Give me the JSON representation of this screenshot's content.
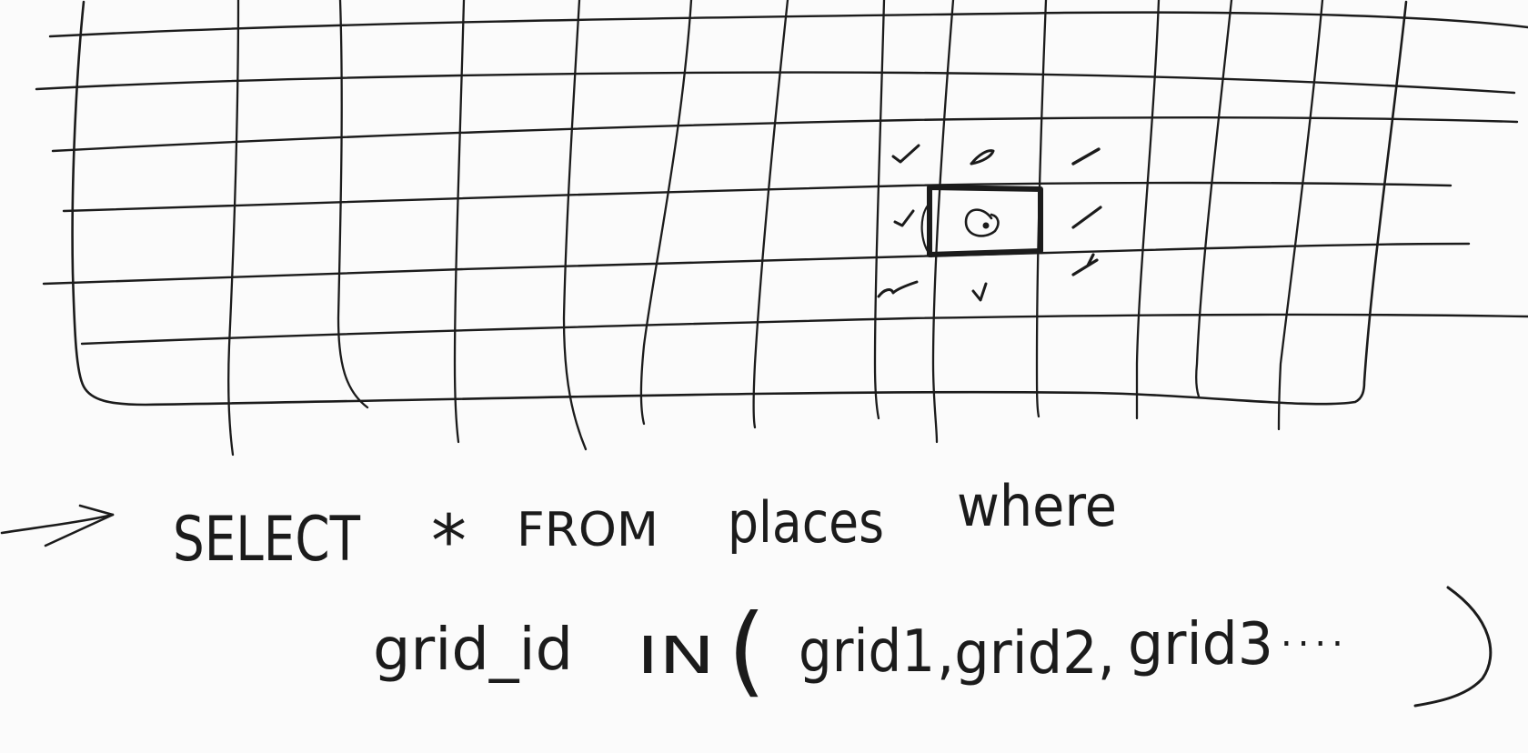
{
  "sketch": {
    "query_line_1": {
      "select": "SELECT",
      "star": "*",
      "from": "FROM",
      "table": "places",
      "where": "where"
    },
    "query_line_2": {
      "column": "grid_id",
      "in": "IN",
      "open_paren": "(",
      "cells": [
        "grid1",
        ",grid2,",
        "grid3"
      ],
      "ellipsis": "....",
      "close_paren": ")"
    },
    "ink_color": "#1b1b1b",
    "paper_color": "#fbfbfb"
  }
}
